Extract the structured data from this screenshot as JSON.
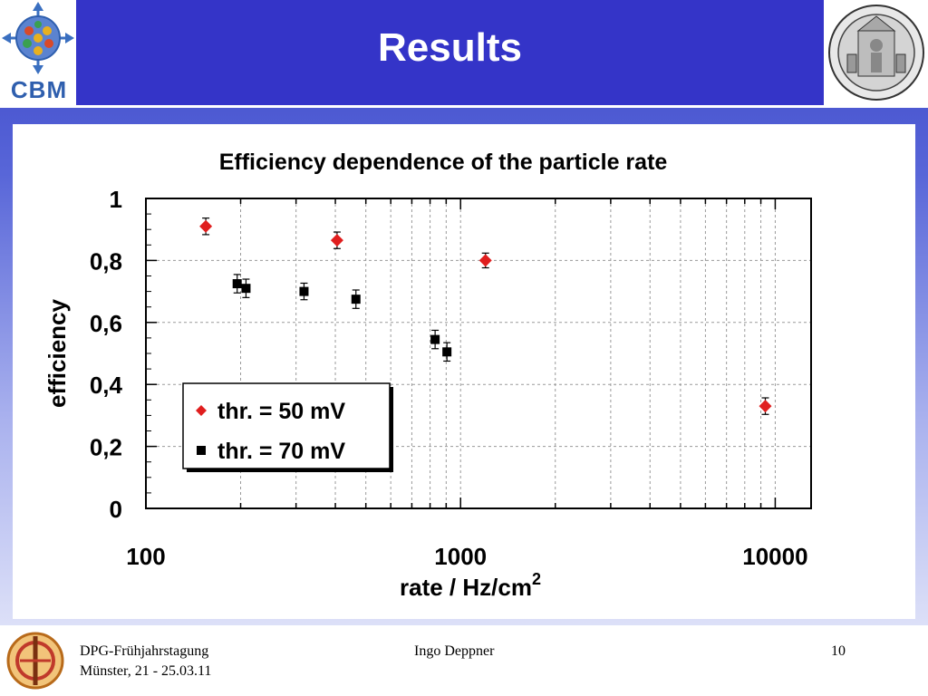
{
  "header": {
    "title": "Results",
    "logo_text": "CBM"
  },
  "footer": {
    "event_line1": "DPG-Frühjahrstagung",
    "event_line2": "Münster, 21 - 25.03.11",
    "author": "Ingo Deppner",
    "page_number": "10"
  },
  "colors": {
    "header_bg": "#3434c8",
    "series_50": "#e01e1e",
    "series_70": "#000000"
  },
  "chart_data": {
    "type": "scatter",
    "title": "Efficiency dependence of the particle rate",
    "xlabel": "rate / Hz/cm",
    "xlabel_superscript": "2",
    "ylabel": "efficiency",
    "xscale": "log",
    "xlim": [
      100,
      13000
    ],
    "ylim": [
      0,
      1
    ],
    "x_ticks": [
      "100",
      "1000",
      "10000"
    ],
    "y_ticks": [
      "0",
      "0,2",
      "0,4",
      "0,6",
      "0,8",
      "1"
    ],
    "grid": true,
    "legend_position": "lower-left",
    "series": [
      {
        "name": "thr. = 50 mV",
        "marker": "diamond",
        "color": "#e01e1e",
        "points": [
          {
            "x": 155,
            "y": 0.91,
            "err": 0.015
          },
          {
            "x": 405,
            "y": 0.865,
            "err": 0.015
          },
          {
            "x": 1200,
            "y": 0.8,
            "err": 0.012
          },
          {
            "x": 9300,
            "y": 0.33,
            "err": 0.015
          }
        ]
      },
      {
        "name": "thr. = 70 mV",
        "marker": "square",
        "color": "#000000",
        "points": [
          {
            "x": 195,
            "y": 0.725,
            "err": 0.018
          },
          {
            "x": 208,
            "y": 0.71,
            "err": 0.018
          },
          {
            "x": 318,
            "y": 0.7,
            "err": 0.015
          },
          {
            "x": 465,
            "y": 0.675,
            "err": 0.018
          },
          {
            "x": 830,
            "y": 0.545,
            "err": 0.018
          },
          {
            "x": 905,
            "y": 0.505,
            "err": 0.018
          }
        ]
      }
    ]
  }
}
